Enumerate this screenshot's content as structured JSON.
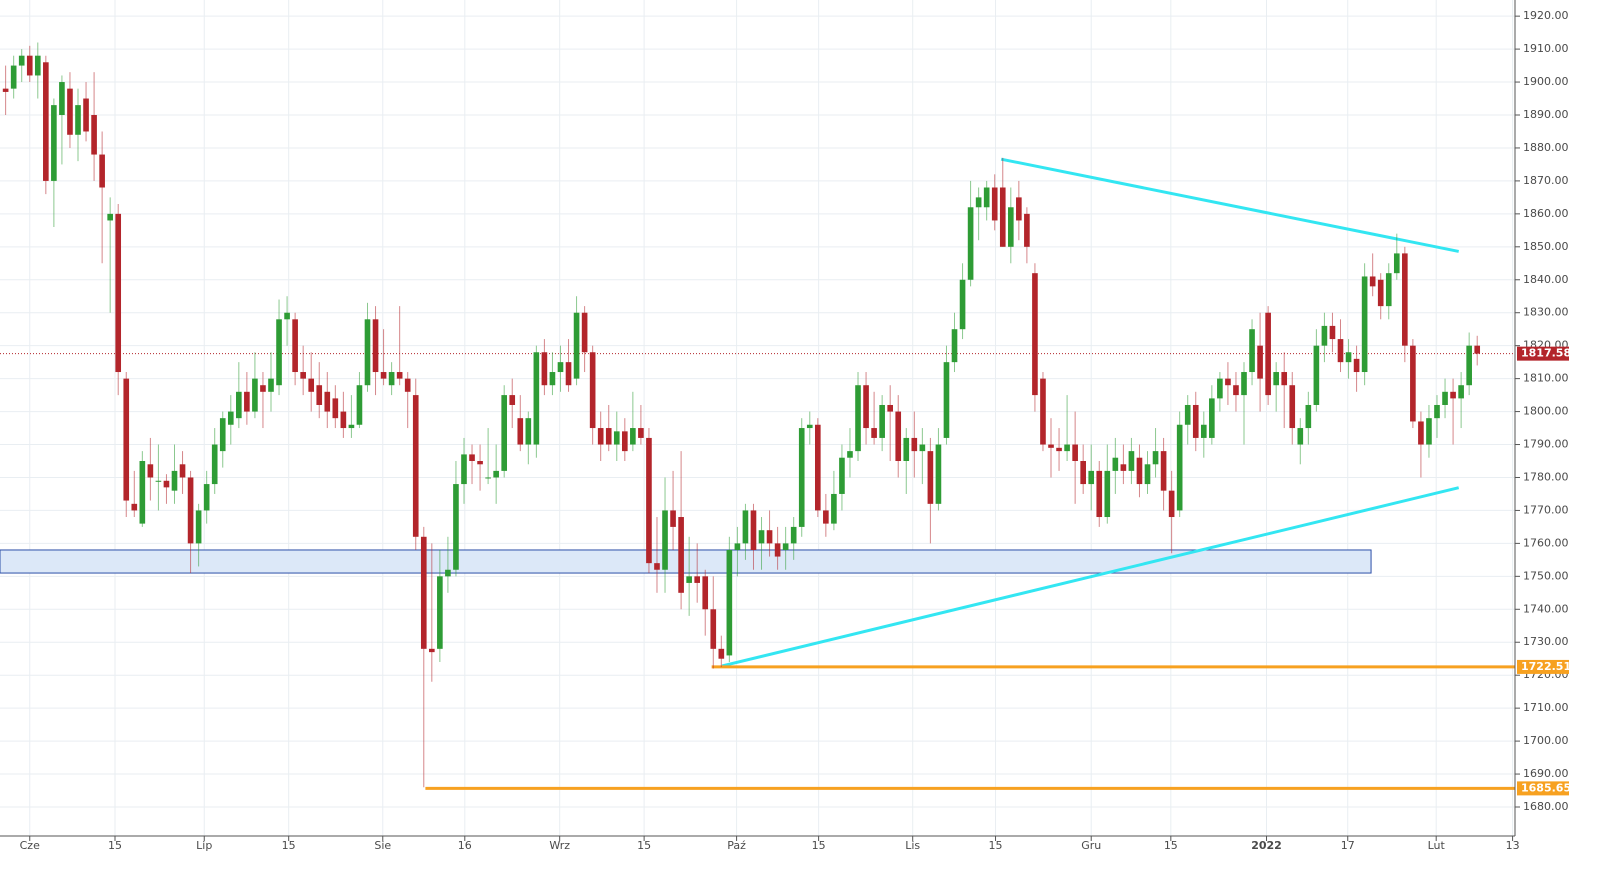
{
  "chart_data": {
    "type": "candlestick",
    "x": [
      -3,
      -2,
      -1,
      0,
      1,
      2,
      3,
      4,
      5,
      6,
      7,
      8,
      9,
      10,
      11,
      12,
      13,
      14,
      15,
      16,
      17,
      18,
      19,
      20,
      21,
      22,
      23,
      24,
      25,
      26,
      27,
      28,
      29,
      30,
      31,
      32,
      33,
      34,
      35,
      36,
      37,
      38,
      39,
      40,
      41,
      42,
      43,
      44,
      45,
      46,
      47,
      48,
      49,
      50,
      51,
      52,
      53,
      54,
      55,
      56,
      57,
      58,
      59,
      60,
      61,
      62,
      63,
      64,
      65,
      66,
      67,
      68,
      69,
      70,
      71,
      72,
      73,
      74,
      75,
      76,
      77,
      78,
      79,
      80,
      81,
      82,
      83,
      84,
      85,
      86,
      87,
      88,
      89,
      90,
      91,
      92,
      93,
      94,
      95,
      96,
      97,
      98,
      99,
      100,
      101,
      102,
      103,
      104,
      105,
      106,
      107,
      108,
      109,
      110,
      111,
      112,
      113,
      114,
      115,
      116,
      117,
      118,
      119,
      120,
      121,
      122,
      123,
      124,
      125,
      126,
      127,
      128,
      129,
      130,
      131,
      132,
      133,
      134,
      135,
      136,
      137,
      138,
      139,
      140,
      141,
      142,
      143,
      144,
      145,
      146,
      147,
      148,
      149,
      150,
      151,
      152,
      153,
      154,
      155,
      156,
      157,
      158,
      159,
      160,
      161,
      162,
      163,
      164,
      165,
      166,
      167,
      168,
      169,
      170,
      171,
      172,
      173,
      174,
      175,
      176,
      177,
      178,
      179,
      180
    ],
    "open": [
      1898,
      1898,
      1905,
      1908,
      1902,
      1906,
      1870,
      1890,
      1898,
      1884,
      1895,
      1890,
      1878,
      1858,
      1860,
      1810,
      1772,
      1766,
      1784,
      1779,
      1779,
      1776,
      1784,
      1780,
      1760,
      1770,
      1778,
      1788,
      1796,
      1798,
      1806,
      1800,
      1808,
      1806,
      1808,
      1828,
      1828,
      1812,
      1810,
      1808,
      1806,
      1804,
      1800,
      1795,
      1796,
      1808,
      1828,
      1812,
      1808,
      1812,
      1810,
      1805,
      1762,
      1728,
      1728,
      1750,
      1752,
      1778,
      1787,
      1785,
      1780,
      1780,
      1782,
      1805,
      1798,
      1790,
      1790,
      1818,
      1808,
      1812,
      1815,
      1810,
      1830,
      1818,
      1795,
      1795,
      1790,
      1794,
      1790,
      1795,
      1792,
      1754,
      1752,
      1770,
      1768,
      1748,
      1750,
      1750,
      1740,
      1728,
      1726,
      1758,
      1760,
      1770,
      1760,
      1764,
      1760,
      1758,
      1760,
      1765,
      1795,
      1796,
      1770,
      1766,
      1775,
      1786,
      1788,
      1808,
      1795,
      1792,
      1802,
      1800,
      1785,
      1792,
      1788,
      1788,
      1772,
      1792,
      1815,
      1825,
      1840,
      1862,
      1862,
      1868,
      1868,
      1850,
      1865,
      1860,
      1842,
      1810,
      1790,
      1789,
      1788,
      1790,
      1785,
      1778,
      1782,
      1768,
      1782,
      1784,
      1782,
      1786,
      1778,
      1784,
      1788,
      1776,
      1770,
      1796,
      1802,
      1792,
      1792,
      1804,
      1810,
      1808,
      1805,
      1812,
      1820,
      1830,
      1808,
      1812,
      1808,
      1790,
      1795,
      1802,
      1820,
      1826,
      1822,
      1815,
      1816,
      1812,
      1841,
      1840,
      1832,
      1842,
      1848,
      1820,
      1797,
      1790,
      1798,
      1802,
      1806,
      1804,
      1808,
      1820
    ],
    "high": [
      1905,
      1908,
      1910,
      1911,
      1912,
      1908,
      1895,
      1902,
      1903,
      1898,
      1900,
      1903,
      1885,
      1865,
      1863,
      1812,
      1782,
      1788,
      1792,
      1790,
      1781,
      1790,
      1788,
      1782,
      1772,
      1782,
      1795,
      1800,
      1805,
      1815,
      1812,
      1818,
      1812,
      1818,
      1834,
      1835,
      1830,
      1820,
      1818,
      1815,
      1812,
      1808,
      1806,
      1805,
      1812,
      1833,
      1832,
      1825,
      1815,
      1832,
      1812,
      1810,
      1765,
      1760,
      1758,
      1762,
      1785,
      1792,
      1790,
      1790,
      1795,
      1790,
      1808,
      1810,
      1805,
      1800,
      1820,
      1822,
      1818,
      1820,
      1822,
      1835,
      1832,
      1820,
      1800,
      1802,
      1800,
      1798,
      1806,
      1802,
      1795,
      1768,
      1780,
      1782,
      1788,
      1762,
      1760,
      1752,
      1750,
      1732,
      1762,
      1765,
      1772,
      1772,
      1768,
      1770,
      1765,
      1765,
      1768,
      1798,
      1800,
      1798,
      1775,
      1782,
      1790,
      1795,
      1812,
      1812,
      1806,
      1805,
      1808,
      1805,
      1795,
      1800,
      1795,
      1792,
      1795,
      1820,
      1830,
      1845,
      1870,
      1868,
      1870,
      1872,
      1877,
      1868,
      1870,
      1862,
      1845,
      1812,
      1798,
      1795,
      1805,
      1800,
      1790,
      1790,
      1785,
      1790,
      1792,
      1790,
      1792,
      1790,
      1788,
      1795,
      1792,
      1782,
      1800,
      1805,
      1806,
      1800,
      1808,
      1812,
      1815,
      1812,
      1815,
      1828,
      1830,
      1832,
      1815,
      1818,
      1812,
      1798,
      1806,
      1825,
      1830,
      1830,
      1828,
      1822,
      1820,
      1845,
      1848,
      1842,
      1845,
      1854,
      1850,
      1822,
      1800,
      1802,
      1805,
      1810,
      1810,
      1812,
      1824,
      1823
    ],
    "low": [
      1890,
      1895,
      1900,
      1900,
      1895,
      1866,
      1856,
      1875,
      1880,
      1876,
      1882,
      1870,
      1845,
      1830,
      1805,
      1768,
      1768,
      1765,
      1773,
      1770,
      1772,
      1772,
      1775,
      1751,
      1753,
      1766,
      1775,
      1783,
      1790,
      1795,
      1796,
      1798,
      1795,
      1800,
      1805,
      1820,
      1808,
      1805,
      1800,
      1798,
      1795,
      1795,
      1792,
      1792,
      1795,
      1806,
      1805,
      1808,
      1805,
      1808,
      1795,
      1758,
      1686,
      1718,
      1724,
      1745,
      1750,
      1772,
      1778,
      1776,
      1778,
      1772,
      1780,
      1795,
      1788,
      1784,
      1786,
      1805,
      1805,
      1806,
      1806,
      1808,
      1812,
      1790,
      1785,
      1788,
      1785,
      1785,
      1788,
      1790,
      1751,
      1745,
      1745,
      1758,
      1740,
      1738,
      1742,
      1732,
      1722,
      1722.51,
      1724,
      1750,
      1755,
      1752,
      1752,
      1756,
      1752,
      1752,
      1755,
      1762,
      1790,
      1768,
      1762,
      1764,
      1770,
      1780,
      1785,
      1790,
      1790,
      1788,
      1785,
      1780,
      1775,
      1780,
      1778,
      1760,
      1770,
      1790,
      1812,
      1822,
      1838,
      1852,
      1858,
      1855,
      1850,
      1845,
      1852,
      1845,
      1800,
      1788,
      1780,
      1782,
      1785,
      1772,
      1775,
      1770,
      1765,
      1766,
      1775,
      1778,
      1778,
      1774,
      1775,
      1780,
      1770,
      1757,
      1768,
      1790,
      1788,
      1786,
      1790,
      1800,
      1802,
      1800,
      1790,
      1808,
      1800,
      1802,
      1800,
      1795,
      1790,
      1784,
      1790,
      1800,
      1815,
      1818,
      1812,
      1810,
      1806,
      1808,
      1835,
      1828,
      1828,
      1840,
      1815,
      1795,
      1780,
      1786,
      1792,
      1798,
      1790,
      1795,
      1805,
      1814
    ],
    "close": [
      1897,
      1905,
      1908,
      1902,
      1908,
      1870,
      1893,
      1900,
      1884,
      1893,
      1885,
      1878,
      1868,
      1860,
      1812,
      1773,
      1770,
      1785,
      1780,
      1779,
      1777,
      1782,
      1780,
      1760,
      1770,
      1778,
      1790,
      1798,
      1800,
      1806,
      1800,
      1810,
      1806,
      1810,
      1828,
      1830,
      1812,
      1810,
      1806,
      1802,
      1800,
      1798,
      1795,
      1796,
      1808,
      1828,
      1812,
      1810,
      1812,
      1810,
      1806,
      1762,
      1728,
      1727,
      1750,
      1752,
      1778,
      1787,
      1785,
      1784,
      1780,
      1782,
      1805,
      1802,
      1790,
      1798,
      1818,
      1808,
      1812,
      1815,
      1808,
      1830,
      1818,
      1795,
      1790,
      1790,
      1794,
      1788,
      1795,
      1792,
      1754,
      1752,
      1770,
      1765,
      1745,
      1750,
      1748,
      1740,
      1728,
      1725,
      1758,
      1760,
      1770,
      1758,
      1764,
      1760,
      1756,
      1760,
      1765,
      1795,
      1796,
      1770,
      1766,
      1775,
      1786,
      1788,
      1808,
      1795,
      1792,
      1802,
      1800,
      1785,
      1792,
      1788,
      1790,
      1772,
      1790,
      1815,
      1825,
      1840,
      1862,
      1865,
      1868,
      1858,
      1850,
      1862,
      1858,
      1850,
      1805,
      1790,
      1789,
      1788,
      1790,
      1785,
      1778,
      1782,
      1768,
      1782,
      1786,
      1782,
      1788,
      1778,
      1784,
      1788,
      1776,
      1768,
      1796,
      1802,
      1792,
      1796,
      1804,
      1810,
      1808,
      1805,
      1812,
      1825,
      1810,
      1805,
      1812,
      1808,
      1795,
      1795,
      1802,
      1820,
      1826,
      1822,
      1815,
      1818,
      1812,
      1841,
      1838,
      1832,
      1842,
      1848,
      1820,
      1797,
      1790,
      1798,
      1802,
      1806,
      1804,
      1808,
      1820,
      1817.58
    ],
    "up_color": "#2e9c35",
    "down_color": "#b3252b",
    "xlim": [
      -3.7,
      184.7
    ],
    "ylim": [
      1671.2,
      1924.9
    ],
    "xticks": [
      {
        "value": 0,
        "label": "Cze"
      },
      {
        "value": 10.6,
        "label": "15"
      },
      {
        "value": 21.7,
        "label": "Lip"
      },
      {
        "value": 32.2,
        "label": "15"
      },
      {
        "value": 43.9,
        "label": "Sie"
      },
      {
        "value": 54.1,
        "label": "16"
      },
      {
        "value": 65.9,
        "label": "Wrz"
      },
      {
        "value": 76.4,
        "label": "15"
      },
      {
        "value": 87.9,
        "label": "Paź"
      },
      {
        "value": 98.1,
        "label": "15"
      },
      {
        "value": 109.8,
        "label": "Lis"
      },
      {
        "value": 120.1,
        "label": "15"
      },
      {
        "value": 132,
        "label": "Gru"
      },
      {
        "value": 141.9,
        "label": "15"
      },
      {
        "value": 153.8,
        "label": "2022"
      },
      {
        "value": 163.9,
        "label": "17"
      },
      {
        "value": 174.9,
        "label": "Lut"
      },
      {
        "value": 184.4,
        "label": "13"
      }
    ],
    "yticks": [
      {
        "value": 1680,
        "label": "1680.00"
      },
      {
        "value": 1690,
        "label": "1690.00"
      },
      {
        "value": 1700,
        "label": "1700.00"
      },
      {
        "value": 1710,
        "label": "1710.00"
      },
      {
        "value": 1720,
        "label": "1720.00"
      },
      {
        "value": 1730,
        "label": "1730.00"
      },
      {
        "value": 1740,
        "label": "1740.00"
      },
      {
        "value": 1750,
        "label": "1750.00"
      },
      {
        "value": 1760,
        "label": "1760.00"
      },
      {
        "value": 1770,
        "label": "1770.00"
      },
      {
        "value": 1780,
        "label": "1780.00"
      },
      {
        "value": 1790,
        "label": "1790.00"
      },
      {
        "value": 1800,
        "label": "1800.00"
      },
      {
        "value": 1810,
        "label": "1810.00"
      },
      {
        "value": 1820,
        "label": "1820.00"
      },
      {
        "value": 1830,
        "label": "1830.00"
      },
      {
        "value": 1840,
        "label": "1840.00"
      },
      {
        "value": 1850,
        "label": "1850.00"
      },
      {
        "value": 1860,
        "label": "1860.00"
      },
      {
        "value": 1870,
        "label": "1870.00"
      },
      {
        "value": 1880,
        "label": "1880.00"
      },
      {
        "value": 1890,
        "label": "1890.00"
      },
      {
        "value": 1900,
        "label": "1900.00"
      },
      {
        "value": 1910,
        "label": "1910.00"
      },
      {
        "value": 1920,
        "label": "1920.00"
      }
    ],
    "grid": true,
    "zone": {
      "x": [
        -3.7,
        166.8
      ],
      "y": [
        1751,
        1758
      ],
      "color": "#dce8f8"
    },
    "trend_lines": [
      {
        "x": [
          120.8,
          177.7
        ],
        "y": [
          1876.6,
          1848.6
        ],
        "color": "#33e6f2"
      },
      {
        "x": [
          86.1,
          177.7
        ],
        "y": [
          1722.8,
          1776.9
        ],
        "color": "#33e6f2"
      }
    ],
    "levels": [
      {
        "value": 1722.51,
        "x_start": 84.8,
        "color": "#f7a120"
      },
      {
        "value": 1685.65,
        "x_start": 49.2,
        "color": "#f7a120"
      }
    ],
    "last_price": {
      "value": 1817.58,
      "color": "#b3252b"
    }
  }
}
